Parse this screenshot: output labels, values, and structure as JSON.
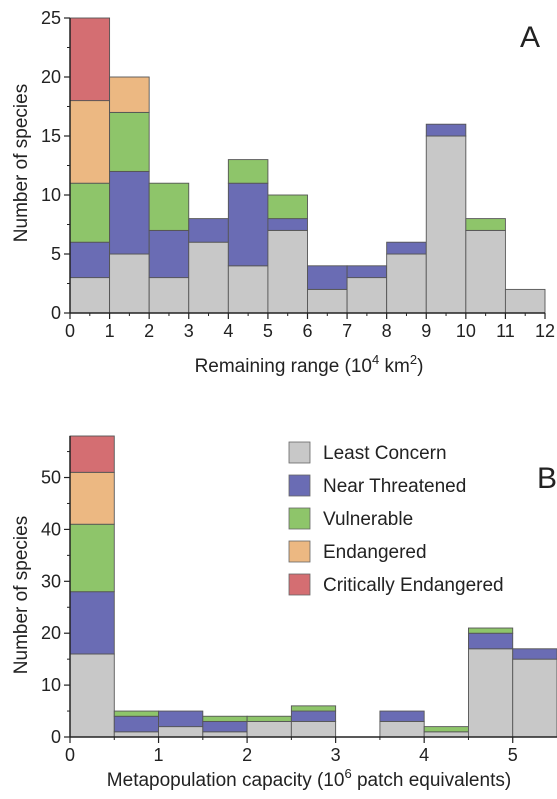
{
  "chart_data": [
    {
      "type": "bar",
      "stacked": true,
      "panel_label": "A",
      "xlabel": "Remaining range (10",
      "xlabel_sup": "4",
      "xlabel_mid": " km",
      "xlabel_sup2": "2",
      "xlabel_end": ")",
      "ylabel": "Number of species",
      "xlim": [
        0,
        12
      ],
      "ylim": [
        0,
        25
      ],
      "xticks": [
        0,
        1,
        2,
        3,
        4,
        5,
        6,
        7,
        8,
        9,
        10,
        11,
        12
      ],
      "yticks": [
        0,
        5,
        10,
        15,
        20,
        25
      ],
      "bin_edges": [
        0,
        1,
        2,
        3,
        4,
        5,
        6,
        7,
        8,
        9,
        10,
        11,
        12
      ],
      "series": [
        {
          "name": "Least Concern",
          "color": "#c8c8c8",
          "values": [
            3,
            5,
            3,
            6,
            4,
            7,
            2,
            3,
            5,
            15,
            7,
            2
          ]
        },
        {
          "name": "Near Threatened",
          "color": "#6a6cb4",
          "values": [
            3,
            7,
            4,
            2,
            7,
            1,
            2,
            1,
            1,
            1,
            0,
            0
          ]
        },
        {
          "name": "Vulnerable",
          "color": "#8ec56a",
          "values": [
            5,
            5,
            4,
            0,
            2,
            2,
            0,
            0,
            0,
            0,
            1,
            0
          ]
        },
        {
          "name": "Endangered",
          "color": "#ecb882",
          "values": [
            7,
            3,
            0,
            0,
            0,
            0,
            0,
            0,
            0,
            0,
            0,
            0
          ]
        },
        {
          "name": "Critically Endangered",
          "color": "#d46e72",
          "values": [
            7,
            0,
            0,
            0,
            0,
            0,
            0,
            0,
            0,
            0,
            0,
            0
          ]
        }
      ]
    },
    {
      "type": "bar",
      "stacked": true,
      "panel_label": "B",
      "xlabel": "Metapopulation capacity (10",
      "xlabel_sup": "6",
      "xlabel_end": " patch equivalents)",
      "ylabel": "Number of species",
      "xlim": [
        0,
        5.5
      ],
      "ylim": [
        0,
        58
      ],
      "xticks": [
        0,
        1,
        2,
        3,
        4,
        5
      ],
      "yticks": [
        0,
        10,
        20,
        30,
        40,
        50
      ],
      "bin_edges": [
        0,
        0.5,
        1.0,
        1.5,
        2.0,
        2.5,
        3.0,
        3.5,
        4.0,
        4.5,
        5.0,
        5.5
      ],
      "series": [
        {
          "name": "Least Concern",
          "color": "#c8c8c8",
          "values": [
            16,
            1,
            2,
            1,
            3,
            3,
            0,
            3,
            1,
            17,
            15
          ]
        },
        {
          "name": "Near Threatened",
          "color": "#6a6cb4",
          "values": [
            12,
            3,
            3,
            2,
            0,
            2,
            0,
            2,
            0,
            3,
            2
          ]
        },
        {
          "name": "Vulnerable",
          "color": "#8ec56a",
          "values": [
            13,
            1,
            0,
            1,
            1,
            1,
            0,
            0,
            1,
            1,
            0
          ]
        },
        {
          "name": "Endangered",
          "color": "#ecb882",
          "values": [
            10,
            0,
            0,
            0,
            0,
            0,
            0,
            0,
            0,
            0,
            0
          ]
        },
        {
          "name": "Critically Endangered",
          "color": "#d46e72",
          "values": [
            7,
            0,
            0,
            0,
            0,
            0,
            0,
            0,
            0,
            0,
            0
          ]
        }
      ],
      "legend": {
        "placement": "top-right",
        "entries": [
          "Least Concern",
          "Near Threatened",
          "Vulnerable",
          "Endangered",
          "Critically Endangered"
        ]
      }
    }
  ]
}
